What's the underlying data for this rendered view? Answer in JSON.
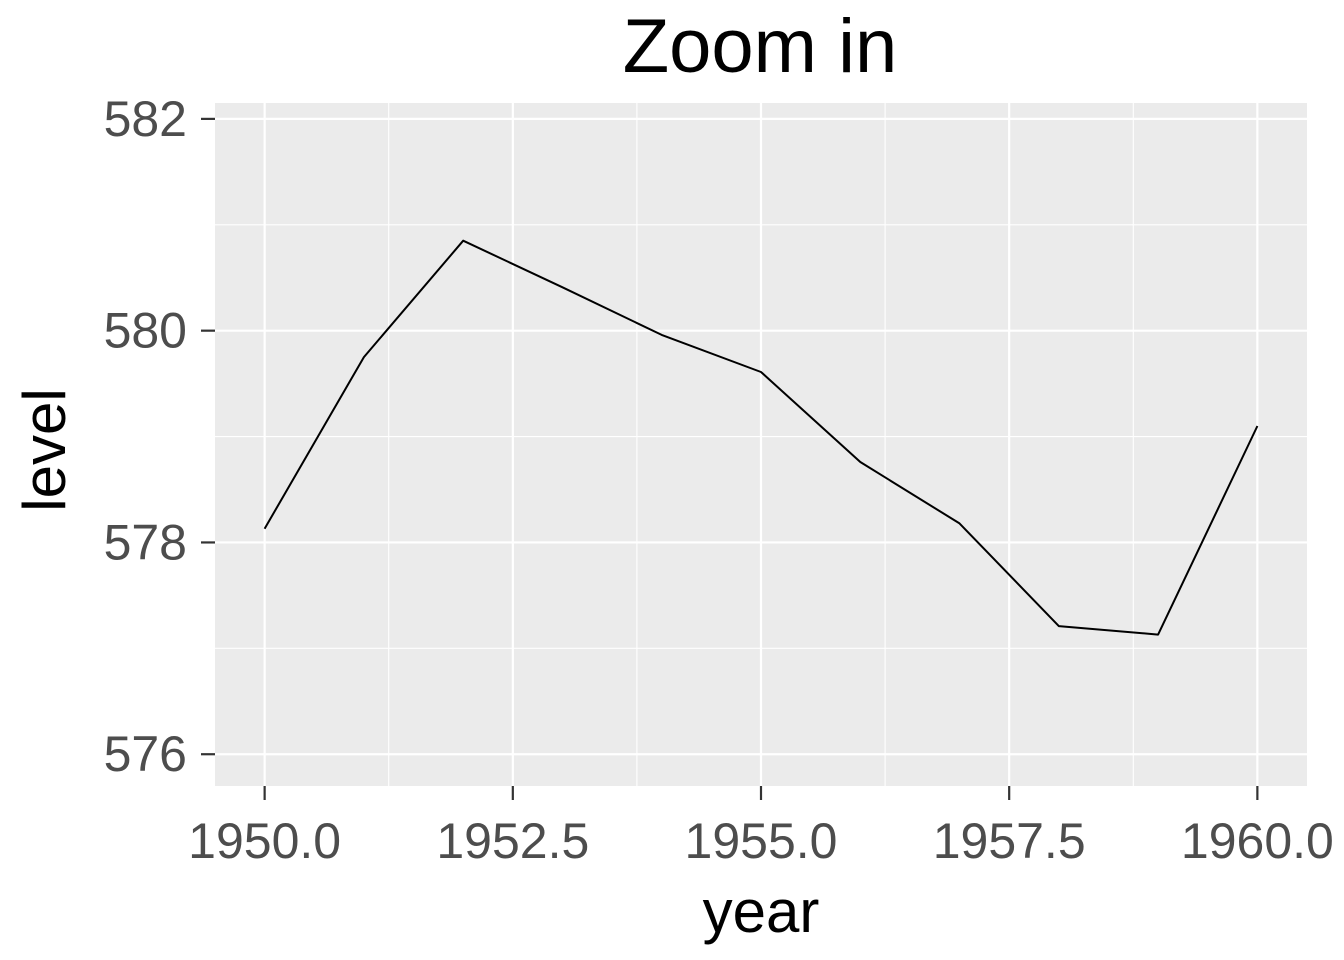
{
  "chart_data": {
    "type": "line",
    "title": "Zoom in",
    "xlabel": "year",
    "ylabel": "level",
    "xlim": [
      1949.5,
      1960.5
    ],
    "ylim": [
      575.7,
      582.15
    ],
    "x_ticks": [
      1950.0,
      1952.5,
      1955.0,
      1957.5,
      1960.0
    ],
    "x_tick_labels": [
      "1950.0",
      "1952.5",
      "1955.0",
      "1957.5",
      "1960.0"
    ],
    "y_ticks": [
      576,
      578,
      580,
      582
    ],
    "y_tick_labels": [
      "576",
      "578",
      "580",
      "582"
    ],
    "x_minor_ticks": [
      1951.25,
      1953.75,
      1956.25,
      1958.75
    ],
    "y_minor_ticks": [
      577,
      579,
      581
    ],
    "grid": true,
    "legend": "none",
    "colors": {
      "panel": "#ebebeb",
      "grid": "#ffffff",
      "line": "#000000",
      "tick_text": "#4d4d4d"
    },
    "series": [
      {
        "x": [
          1950,
          1951,
          1952,
          1953,
          1954,
          1955,
          1956,
          1957,
          1958,
          1959,
          1960
        ],
        "y": [
          578.13,
          579.75,
          580.85,
          580.41,
          579.96,
          579.61,
          578.76,
          578.18,
          577.21,
          577.13,
          579.1
        ]
      }
    ]
  }
}
